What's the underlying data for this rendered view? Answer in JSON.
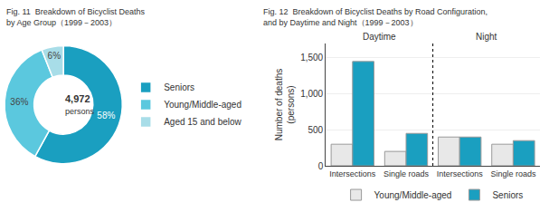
{
  "chart_data": [
    {
      "type": "pie",
      "title": "Fig. 11  Breakdown of Bicyclist Deaths\nby Age Group（1999－2003）",
      "categories": [
        "Seniors",
        "Young/Middle-aged",
        "Aged 15 and below"
      ],
      "values": [
        58,
        36,
        6
      ],
      "value_labels": [
        "58%",
        "36%",
        "6%"
      ],
      "colors": [
        "#1a9fc0",
        "#5bc8de",
        "#a8dde8"
      ],
      "data_labels": true,
      "annotations": [
        "4,972",
        "persons"
      ],
      "legend": "right"
    },
    {
      "type": "bar",
      "title": "Fig. 12  Breakdown of Bicyclist Deaths by Road Configuration,\nand by Daytime and Night（1999－2003）",
      "categories": [
        "Intersections",
        "Single roads",
        "Intersections",
        "Single roads"
      ],
      "series": [
        {
          "name": "Young/Middle-aged",
          "color": "#e8e8e8",
          "values": [
            300,
            200,
            400,
            300
          ]
        },
        {
          "name": "Seniors",
          "color": "#1a9fc0",
          "values": [
            1450,
            450,
            400,
            350
          ]
        }
      ],
      "ylabel": "Number of deaths\n(persons)",
      "ylim": [
        0,
        1700
      ],
      "yticks": [
        0,
        500,
        {
          "value": 1000,
          "label": "1,000"
        },
        {
          "value": 1500,
          "label": "1,500"
        }
      ],
      "annotations": [
        "Daytime",
        "Night"
      ],
      "grid": true,
      "legend": "bottom"
    }
  ]
}
